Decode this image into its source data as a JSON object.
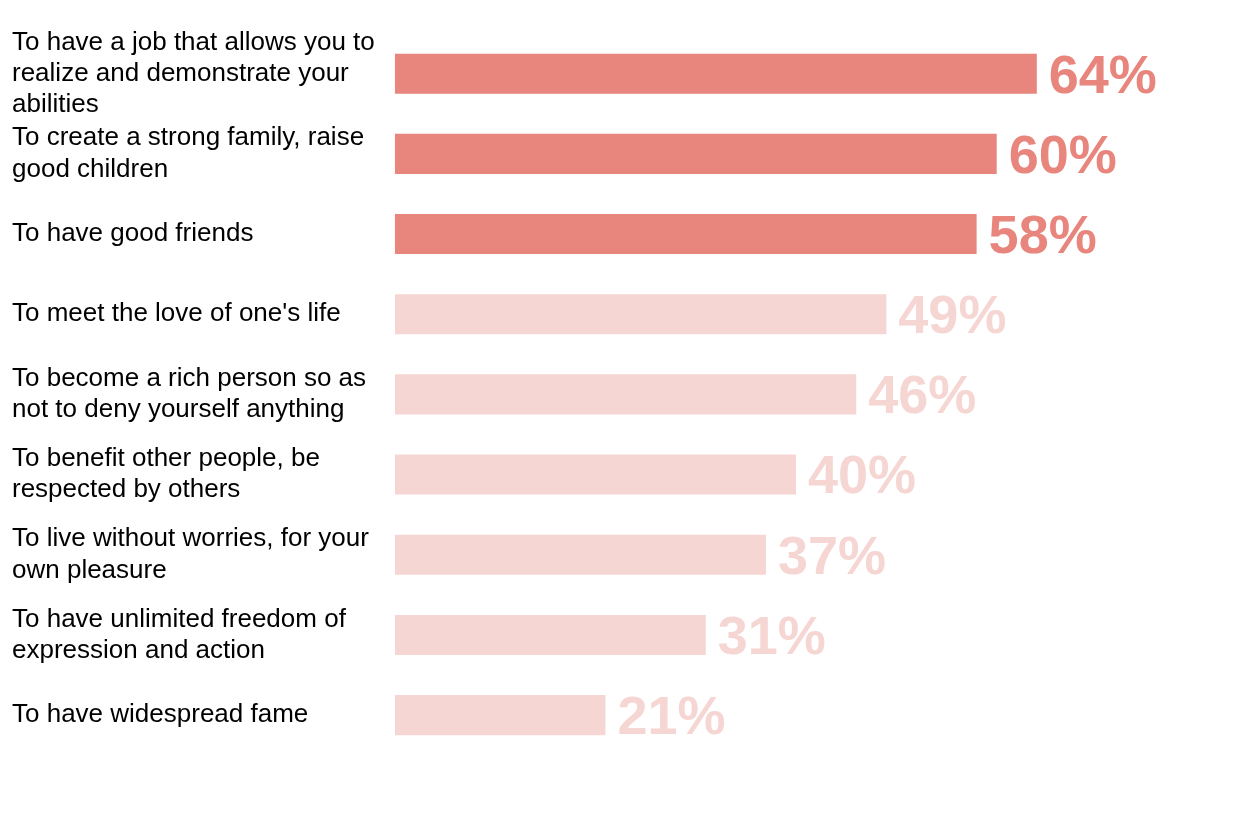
{
  "chart_data": {
    "type": "bar",
    "orientation": "horizontal",
    "categories": [
      "To have a job that allows you to realize and demonstrate your abilities",
      "To create a strong family, raise good children",
      "To have good friends",
      "To meet the love of one's life",
      "To become a rich person so as not to deny yourself anything",
      "To benefit other people, be respected by others",
      "To live without worries, for your own pleasure",
      "To have unlimited freedom of expression and action",
      "To have widespread fame"
    ],
    "values": [
      64,
      60,
      58,
      49,
      46,
      40,
      37,
      31,
      21
    ],
    "colors": [
      "#e8857c",
      "#e8857c",
      "#e8857c",
      "#f6d6d3",
      "#f6d6d3",
      "#f6d6d3",
      "#f6d6d3",
      "#f6d6d3",
      "#f6d6d3"
    ],
    "value_labels": [
      "64%",
      "60%",
      "58%",
      "49%",
      "46%",
      "40%",
      "37%",
      "31%",
      "21%"
    ],
    "tick_labels": "y",
    "legend": false
  }
}
